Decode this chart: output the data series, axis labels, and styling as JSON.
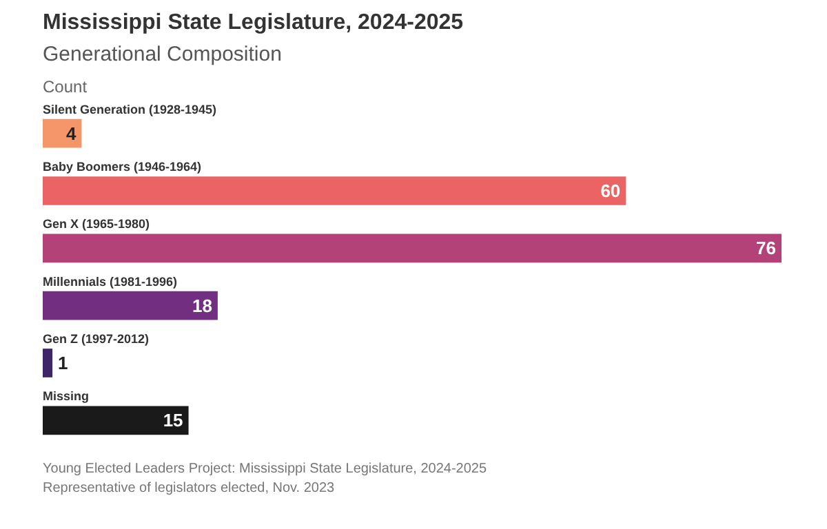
{
  "chart_data": {
    "type": "bar",
    "orientation": "horizontal",
    "title": "Mississippi State Legislature, 2024-2025",
    "subtitle": "Generational Composition",
    "xlabel": "Count",
    "categories": [
      "Silent Generation (1928-1945)",
      "Baby Boomers (1946-1964)",
      "Gen X (1965-1980)",
      "Millennials (1981-1996)",
      "Gen Z (1997-2012)",
      "Missing"
    ],
    "values": [
      4,
      60,
      76,
      18,
      1,
      15
    ],
    "colors": [
      "#f4956a",
      "#eb6464",
      "#b34278",
      "#722f82",
      "#3d2566",
      "#1a1a1a"
    ],
    "xlim": [
      0,
      76
    ],
    "legend": false,
    "data_labels": true,
    "annotations": [
      "Young Elected Leaders Project: Mississippi State Legislature, 2024-2025",
      "Representative of legislators elected, Nov. 2023"
    ]
  }
}
